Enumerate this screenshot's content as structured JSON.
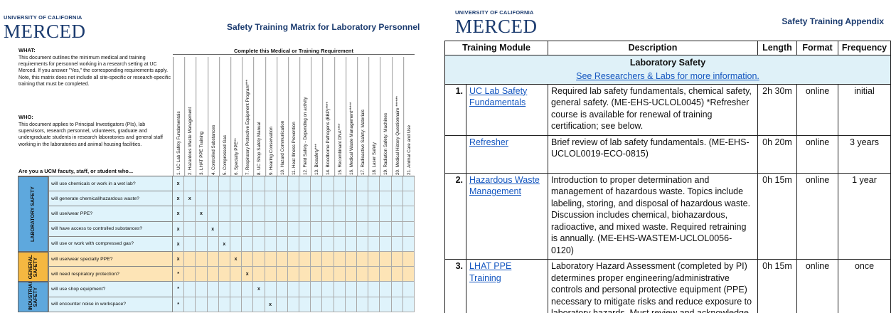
{
  "matrix_page": {
    "logo": {
      "line1": "UNIVERSITY OF CALIFORNIA",
      "line2": "MERCED"
    },
    "title": "Safety Training Matrix for Laboratory Personnel",
    "what_heading": "WHAT:",
    "what_text": "This document outlines the minimum medical and training requirements for personnel working in a research setting at UC Merced.  If you answer \"Yes,\" the corresponding requirements apply. Note, this matrix does not include all site-specific or research-specific training that must be completed.",
    "who_heading": "WHO:",
    "who_text": "This document applies to Principal Investigators (PIs), lab supervisors, research personnel, volunteers, graduate and undergraduate students in research laboratories and general staff working in the laboratories and animal housing facilities.",
    "question_prompt": "Are you a UCM facuty, staff, or student who...",
    "requirement_heading": "Complete this Medical or Training Requirement",
    "columns": [
      "1. UC Lab Safety Fundamentals",
      "2. Hazardous Waste Management",
      "3. LHAT PPE Training",
      "4. Controlled Substances",
      "5. Compressed Gas",
      "6. Specialty PPE**",
      "7. Respiratory Protective Equipment Program***",
      "8. UC Shop Safety Manual",
      "9. Hearing Conservation",
      "10. Hazard Communication",
      "11. Heat Illness Prevention",
      "12. Field Safety - Depending on activity",
      "13. Biosafety***",
      "14. Bloodborne Pathogens (BBP)****",
      "15. Recombinant DNA****",
      "16. Medical Waste Management*****",
      "17. Radioactive Safety: Materials",
      "18. Laser Safety",
      "19. Radiation Safety: Machines",
      "20. Medical History Questionnaire ******",
      "21. Animal Care and Use"
    ],
    "sections": [
      {
        "label": "LABORATORY SAFETY",
        "color": "#5ea8dd",
        "row_color": "#dff3fb",
        "rows": [
          {
            "question": "will use chemicals or work in a wet lab?",
            "marks": {
              "1": "x"
            }
          },
          {
            "question": "will generate chemical/hazardous waste?",
            "marks": {
              "1": "x",
              "2": "x"
            }
          },
          {
            "question": "will use/wear PPE?",
            "marks": {
              "1": "x",
              "3": "x"
            }
          },
          {
            "question": "will have access to controlled substances?",
            "marks": {
              "1": "x",
              "4": "x"
            }
          },
          {
            "question": "will use or work with compressed gas?",
            "marks": {
              "1": "x",
              "5": "x"
            }
          }
        ]
      },
      {
        "label": "GENERAL SAFETY",
        "color": "#f5b841",
        "row_color": "#fde4b6",
        "rows": [
          {
            "question": "will use/wear specialty PPE?",
            "marks": {
              "1": "x",
              "6": "x"
            }
          },
          {
            "question": "will need respiratory protection?",
            "marks": {
              "1": "*",
              "7": "x"
            }
          }
        ]
      },
      {
        "label": "INDUSTRIAL SAFETY",
        "color": "#5ea8dd",
        "row_color": "#dff3fb",
        "rows": [
          {
            "question": "will use shop equipment?",
            "marks": {
              "1": "*",
              "8": "x"
            }
          },
          {
            "question": "will encounter noise in workspace?",
            "marks": {
              "1": "*",
              "9": "x"
            }
          }
        ]
      }
    ]
  },
  "appendix_page": {
    "logo": {
      "line1": "UNIVERSITY OF CALIFORNIA",
      "line2": "MERCED"
    },
    "title": "Safety Training Appendix",
    "table": {
      "headers": [
        "Training Module",
        "Description",
        "Length",
        "Format",
        "Frequency"
      ],
      "sections": [
        {
          "title": "Laboratory Safety",
          "link": "See Researchers & Labs for more information.",
          "rows": [
            {
              "number": "1.",
              "module": "UC Lab Safety Fundamentals",
              "description": "Required lab safety fundamentals, chemical safety, general safety.  (ME-EHS-UCLOL0045)  *Refresher course is available for renewal of training certification; see below.",
              "length": "2h 30m",
              "format": "online",
              "frequency": "initial"
            },
            {
              "module": "Refresher",
              "description": "Brief review of lab safety fundamentals. (ME-EHS-UCLOL0019-ECO-0815)",
              "length": "0h 20m",
              "format": "online",
              "frequency": "3 years"
            },
            {
              "number": "2.",
              "module": "Hazardous Waste Management",
              "description": "Introduction to proper determination and management of hazardous waste. Topics include labeling, storing, and disposal of hazardous waste. Discussion includes chemical, biohazardous, radioactive, and mixed waste. Required retraining is annually.  (ME-EHS-WASTEM-UCLOL0056-0120)",
              "length": "0h 15m",
              "format": "online",
              "frequency": "1 year"
            },
            {
              "number": "3.",
              "module": "LHAT PPE Training",
              "description": "Laboratory Hazard Assessment (completed by PI) determines proper engineering/administrative controls and personal protective equipment (PPE) necessary to mitigate risks and reduce exposure to laboratory hazards.  Must review and acknowledge",
              "length": "0h 15m",
              "format": "online",
              "frequency": "once"
            }
          ]
        }
      ]
    }
  }
}
